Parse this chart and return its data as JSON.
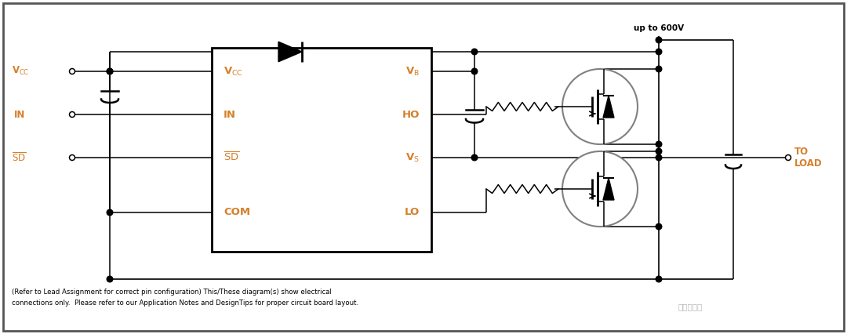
{
  "bg_color": "#ffffff",
  "line_color": "#000000",
  "text_color": "#d4802a",
  "gray_color": "#808080",
  "fig_width": 10.8,
  "fig_height": 4.26,
  "footer_text1": "(Refer to Lead Assignment for correct pin configuration) This/These diagram(s) show electrical",
  "footer_text2": "connections only.  Please refer to our Application Notes and DesignTips for proper circuit board layout.",
  "watermark": "硬件笔记本",
  "label_600v": "up to 600V",
  "label_to_load": "TO\nLOAD"
}
